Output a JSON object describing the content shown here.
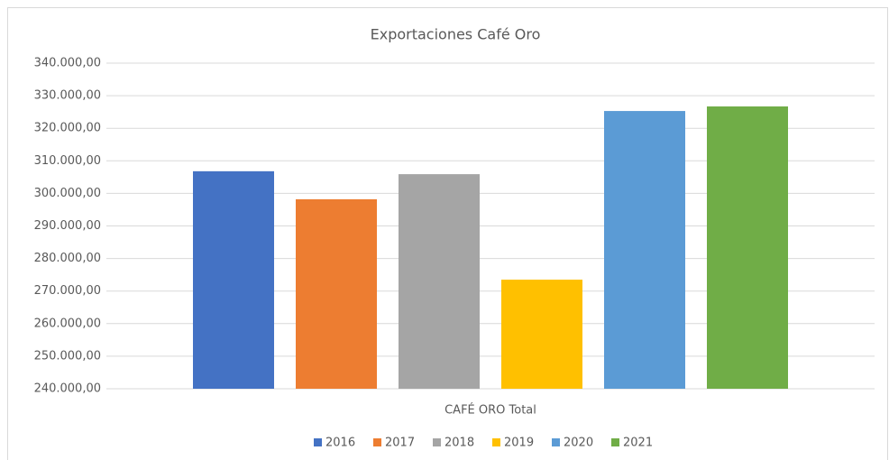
{
  "chart_data": {
    "type": "bar",
    "title": "Exportaciones Café Oro",
    "categories": [
      "CAFÉ ORO Total"
    ],
    "series": [
      {
        "name": "2016",
        "color": "#4472c4",
        "values": [
          306800
        ]
      },
      {
        "name": "2017",
        "color": "#ed7d31",
        "values": [
          298200
        ]
      },
      {
        "name": "2018",
        "color": "#a5a5a5",
        "values": [
          305900
        ]
      },
      {
        "name": "2019",
        "color": "#ffc000",
        "values": [
          273500
        ]
      },
      {
        "name": "2020",
        "color": "#5b9bd5",
        "values": [
          325300
        ]
      },
      {
        "name": "2021",
        "color": "#70ad47",
        "values": [
          326700
        ]
      }
    ],
    "ylim": [
      240000,
      340000
    ],
    "yticks": [
      {
        "value": 240000,
        "label": "240.000,00"
      },
      {
        "value": 250000,
        "label": "250.000,00"
      },
      {
        "value": 260000,
        "label": "260.000,00"
      },
      {
        "value": 270000,
        "label": "270.000,00"
      },
      {
        "value": 280000,
        "label": "280.000,00"
      },
      {
        "value": 290000,
        "label": "290.000,00"
      },
      {
        "value": 300000,
        "label": "300.000,00"
      },
      {
        "value": 310000,
        "label": "310.000,00"
      },
      {
        "value": 320000,
        "label": "320.000,00"
      },
      {
        "value": 330000,
        "label": "330.000,00"
      },
      {
        "value": 340000,
        "label": "340.000,00"
      }
    ],
    "grid": true,
    "legend": "bottom"
  }
}
